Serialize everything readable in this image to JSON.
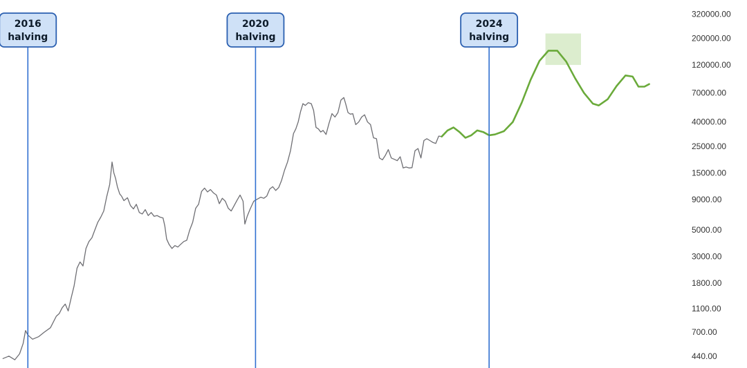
{
  "chart_data": {
    "type": "line",
    "title": "",
    "xlabel": "",
    "ylabel": "",
    "y_scale": "log",
    "x_range": [
      2016.05,
      2027.6
    ],
    "y_range": [
      400,
      330000
    ],
    "grid": false,
    "legend": "none",
    "y_ticks": [
      {
        "value": 320000,
        "label": "320000.00"
      },
      {
        "value": 200000,
        "label": "200000.00"
      },
      {
        "value": 120000,
        "label": "120000.00"
      },
      {
        "value": 70000,
        "label": "70000.00"
      },
      {
        "value": 40000,
        "label": "40000.00"
      },
      {
        "value": 25000,
        "label": "25000.00"
      },
      {
        "value": 15000,
        "label": "15000.00"
      },
      {
        "value": 9000,
        "label": "9000.00"
      },
      {
        "value": 5000,
        "label": "5000.00"
      },
      {
        "value": 3000,
        "label": "3000.00"
      },
      {
        "value": 1800,
        "label": "1800.00"
      },
      {
        "value": 1100,
        "label": "1100.00"
      },
      {
        "value": 700,
        "label": "700.00"
      },
      {
        "value": 440,
        "label": "440.00"
      }
    ],
    "halvings": [
      {
        "year": 2016,
        "label_top": "2016",
        "label_bottom": "halving",
        "date": 2016.52
      },
      {
        "year": 2020,
        "label_top": "2020",
        "label_bottom": "halving",
        "date": 2020.36
      },
      {
        "year": 2024,
        "label_top": "2024",
        "label_bottom": "halving",
        "date": 2024.3
      }
    ],
    "projected_peak_zone": {
      "x": [
        2025.25,
        2025.85
      ],
      "y": [
        120000,
        220000
      ]
    },
    "series": [
      {
        "kind": "historical",
        "color": "#6e6e73",
        "points": [
          [
            2016.1,
            420
          ],
          [
            2016.2,
            440
          ],
          [
            2016.3,
            410
          ],
          [
            2016.38,
            460
          ],
          [
            2016.44,
            560
          ],
          [
            2016.48,
            720
          ],
          [
            2016.52,
            660
          ],
          [
            2016.6,
            610
          ],
          [
            2016.7,
            640
          ],
          [
            2016.8,
            700
          ],
          [
            2016.9,
            760
          ],
          [
            2017.0,
            950
          ],
          [
            2017.05,
            1000
          ],
          [
            2017.1,
            1120
          ],
          [
            2017.15,
            1200
          ],
          [
            2017.2,
            1050
          ],
          [
            2017.25,
            1350
          ],
          [
            2017.3,
            1700
          ],
          [
            2017.35,
            2400
          ],
          [
            2017.4,
            2700
          ],
          [
            2017.45,
            2500
          ],
          [
            2017.5,
            3500
          ],
          [
            2017.55,
            4000
          ],
          [
            2017.6,
            4300
          ],
          [
            2017.65,
            5000
          ],
          [
            2017.7,
            5800
          ],
          [
            2017.75,
            6400
          ],
          [
            2017.8,
            7200
          ],
          [
            2017.85,
            9500
          ],
          [
            2017.9,
            12000
          ],
          [
            2017.94,
            18500
          ],
          [
            2017.97,
            15000
          ],
          [
            2018.0,
            13500
          ],
          [
            2018.03,
            11500
          ],
          [
            2018.07,
            10000
          ],
          [
            2018.1,
            9600
          ],
          [
            2018.14,
            8800
          ],
          [
            2018.2,
            9300
          ],
          [
            2018.25,
            8000
          ],
          [
            2018.3,
            7500
          ],
          [
            2018.35,
            8200
          ],
          [
            2018.4,
            7000
          ],
          [
            2018.45,
            6800
          ],
          [
            2018.5,
            7400
          ],
          [
            2018.55,
            6600
          ],
          [
            2018.6,
            7000
          ],
          [
            2018.65,
            6500
          ],
          [
            2018.7,
            6600
          ],
          [
            2018.75,
            6400
          ],
          [
            2018.8,
            6300
          ],
          [
            2018.83,
            5400
          ],
          [
            2018.86,
            4200
          ],
          [
            2018.9,
            3800
          ],
          [
            2018.95,
            3500
          ],
          [
            2019.0,
            3700
          ],
          [
            2019.05,
            3600
          ],
          [
            2019.1,
            3800
          ],
          [
            2019.15,
            4000
          ],
          [
            2019.2,
            4100
          ],
          [
            2019.25,
            5000
          ],
          [
            2019.3,
            5800
          ],
          [
            2019.35,
            7600
          ],
          [
            2019.4,
            8200
          ],
          [
            2019.45,
            10500
          ],
          [
            2019.5,
            11200
          ],
          [
            2019.55,
            10400
          ],
          [
            2019.6,
            10900
          ],
          [
            2019.65,
            10200
          ],
          [
            2019.7,
            9800
          ],
          [
            2019.75,
            8300
          ],
          [
            2019.8,
            9200
          ],
          [
            2019.85,
            8700
          ],
          [
            2019.9,
            7600
          ],
          [
            2019.95,
            7200
          ],
          [
            2020.0,
            8000
          ],
          [
            2020.05,
            8900
          ],
          [
            2020.1,
            9800
          ],
          [
            2020.15,
            8700
          ],
          [
            2020.18,
            5600
          ],
          [
            2020.22,
            6500
          ],
          [
            2020.27,
            7500
          ],
          [
            2020.33,
            8700
          ],
          [
            2020.38,
            9000
          ],
          [
            2020.45,
            9400
          ],
          [
            2020.5,
            9200
          ],
          [
            2020.55,
            9600
          ],
          [
            2020.6,
            11000
          ],
          [
            2020.65,
            11500
          ],
          [
            2020.7,
            10700
          ],
          [
            2020.75,
            11300
          ],
          [
            2020.8,
            13000
          ],
          [
            2020.85,
            15800
          ],
          [
            2020.9,
            18500
          ],
          [
            2020.95,
            23000
          ],
          [
            2021.0,
            32000
          ],
          [
            2021.04,
            35000
          ],
          [
            2021.08,
            40000
          ],
          [
            2021.12,
            49000
          ],
          [
            2021.16,
            57000
          ],
          [
            2021.2,
            55000
          ],
          [
            2021.25,
            58000
          ],
          [
            2021.3,
            57000
          ],
          [
            2021.34,
            50000
          ],
          [
            2021.38,
            36000
          ],
          [
            2021.42,
            35000
          ],
          [
            2021.46,
            33000
          ],
          [
            2021.5,
            34000
          ],
          [
            2021.55,
            31500
          ],
          [
            2021.6,
            39000
          ],
          [
            2021.65,
            47000
          ],
          [
            2021.7,
            44000
          ],
          [
            2021.75,
            48000
          ],
          [
            2021.8,
            61000
          ],
          [
            2021.85,
            64000
          ],
          [
            2021.88,
            57000
          ],
          [
            2021.92,
            48000
          ],
          [
            2021.96,
            46500
          ],
          [
            2022.0,
            47000
          ],
          [
            2022.05,
            38000
          ],
          [
            2022.1,
            40000
          ],
          [
            2022.15,
            44000
          ],
          [
            2022.2,
            46000
          ],
          [
            2022.25,
            40000
          ],
          [
            2022.3,
            38000
          ],
          [
            2022.35,
            29500
          ],
          [
            2022.4,
            29000
          ],
          [
            2022.45,
            20000
          ],
          [
            2022.5,
            19300
          ],
          [
            2022.55,
            21000
          ],
          [
            2022.6,
            23500
          ],
          [
            2022.65,
            20000
          ],
          [
            2022.7,
            19500
          ],
          [
            2022.75,
            19000
          ],
          [
            2022.8,
            20500
          ],
          [
            2022.85,
            16500
          ],
          [
            2022.9,
            16800
          ],
          [
            2022.95,
            16500
          ],
          [
            2023.0,
            16600
          ],
          [
            2023.05,
            23000
          ],
          [
            2023.1,
            24000
          ],
          [
            2023.15,
            20000
          ],
          [
            2023.2,
            28000
          ],
          [
            2023.25,
            29000
          ],
          [
            2023.3,
            28000
          ],
          [
            2023.35,
            27000
          ],
          [
            2023.4,
            26500
          ],
          [
            2023.45,
            30500
          ],
          [
            2023.5,
            30200
          ]
        ]
      },
      {
        "kind": "projection",
        "color": "#6aaa3a",
        "points": [
          [
            2023.5,
            30200
          ],
          [
            2023.6,
            34000
          ],
          [
            2023.7,
            36000
          ],
          [
            2023.8,
            33000
          ],
          [
            2023.9,
            29500
          ],
          [
            2024.0,
            31000
          ],
          [
            2024.1,
            34000
          ],
          [
            2024.2,
            33000
          ],
          [
            2024.3,
            31000
          ],
          [
            2024.4,
            31500
          ],
          [
            2024.55,
            33500
          ],
          [
            2024.7,
            40000
          ],
          [
            2024.85,
            58000
          ],
          [
            2025.0,
            90000
          ],
          [
            2025.15,
            130000
          ],
          [
            2025.3,
            158000
          ],
          [
            2025.45,
            158000
          ],
          [
            2025.6,
            128000
          ],
          [
            2025.75,
            93000
          ],
          [
            2025.9,
            70000
          ],
          [
            2026.05,
            57000
          ],
          [
            2026.15,
            55000
          ],
          [
            2026.3,
            62000
          ],
          [
            2026.45,
            80000
          ],
          [
            2026.6,
            98000
          ],
          [
            2026.72,
            96000
          ],
          [
            2026.82,
            79000
          ],
          [
            2026.92,
            79000
          ],
          [
            2027.0,
            83000
          ]
        ]
      }
    ]
  }
}
